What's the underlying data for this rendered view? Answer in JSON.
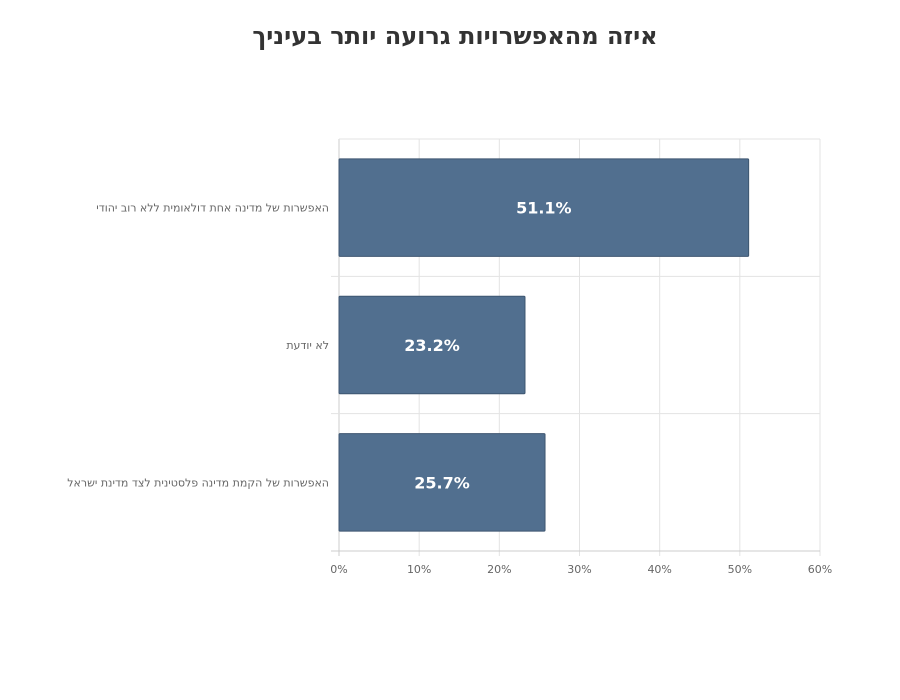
{
  "chart_data": {
    "type": "bar",
    "orientation": "horizontal",
    "title": "איזה מהאפשרויות גרועה יותר בעיניך",
    "categories": [
      "האפשרות של מדינה אחת דולאומית ללא רוב יהודי",
      "לא יודעת",
      "האפשרות של הקמת מדינה פלסטינית לצד מדינת ישראל"
    ],
    "values": [
      51.1,
      23.2,
      25.7
    ],
    "data_labels": [
      "51.1%",
      "23.2%",
      "25.7%"
    ],
    "xlim": [
      0,
      60
    ],
    "ticks": [
      0,
      10,
      20,
      30,
      40,
      50,
      60
    ],
    "tick_labels": [
      "0%",
      "10%",
      "20%",
      "30%",
      "40%",
      "50%",
      "60%"
    ],
    "grid": true,
    "bar_color": "#516f8f",
    "bar_border_color": "#3e5670"
  }
}
